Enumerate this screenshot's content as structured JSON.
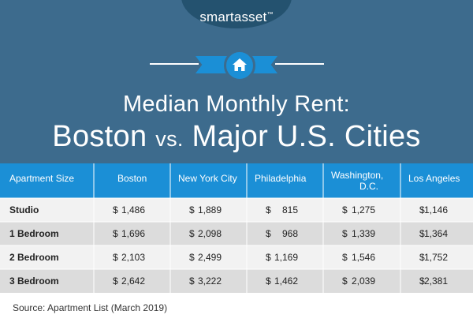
{
  "brand": {
    "name": "smartasset",
    "trademark": "™"
  },
  "title": {
    "line1": "Median Monthly Rent:",
    "line2_city": "Boston",
    "line2_vs": "vs.",
    "line2_rest": "Major U.S. Cities"
  },
  "colors": {
    "header_bg": "#3d6b8d",
    "table_header_bg": "#1b8fd6",
    "row_alt_bg": "#dcdcdc",
    "row_bg": "#f2f2f2"
  },
  "icons": {
    "home": "home-icon"
  },
  "chart_data": {
    "type": "table",
    "columns": [
      "Apartment Size",
      "Boston",
      "New York City",
      "Philadelphia",
      "Washington, D.C.",
      "Los Angeles"
    ],
    "column_lines": [
      [
        "Apartment Size"
      ],
      [
        "Boston"
      ],
      [
        "New York City"
      ],
      [
        "Philadelphia"
      ],
      [
        "Washington,",
        "D.C."
      ],
      [
        "Los Angeles"
      ]
    ],
    "currency": "$",
    "rows": [
      {
        "label": "Studio",
        "values": [
          1486,
          1889,
          815,
          1275,
          1146
        ]
      },
      {
        "label": "1 Bedroom",
        "values": [
          1696,
          2098,
          968,
          1339,
          1364
        ]
      },
      {
        "label": "2 Bedroom",
        "values": [
          2103,
          2499,
          1169,
          1546,
          1752
        ]
      },
      {
        "label": "3 Bedroom",
        "values": [
          2642,
          3222,
          1462,
          2039,
          2381
        ]
      }
    ]
  },
  "source": "Source: Apartment List (March 2019)"
}
